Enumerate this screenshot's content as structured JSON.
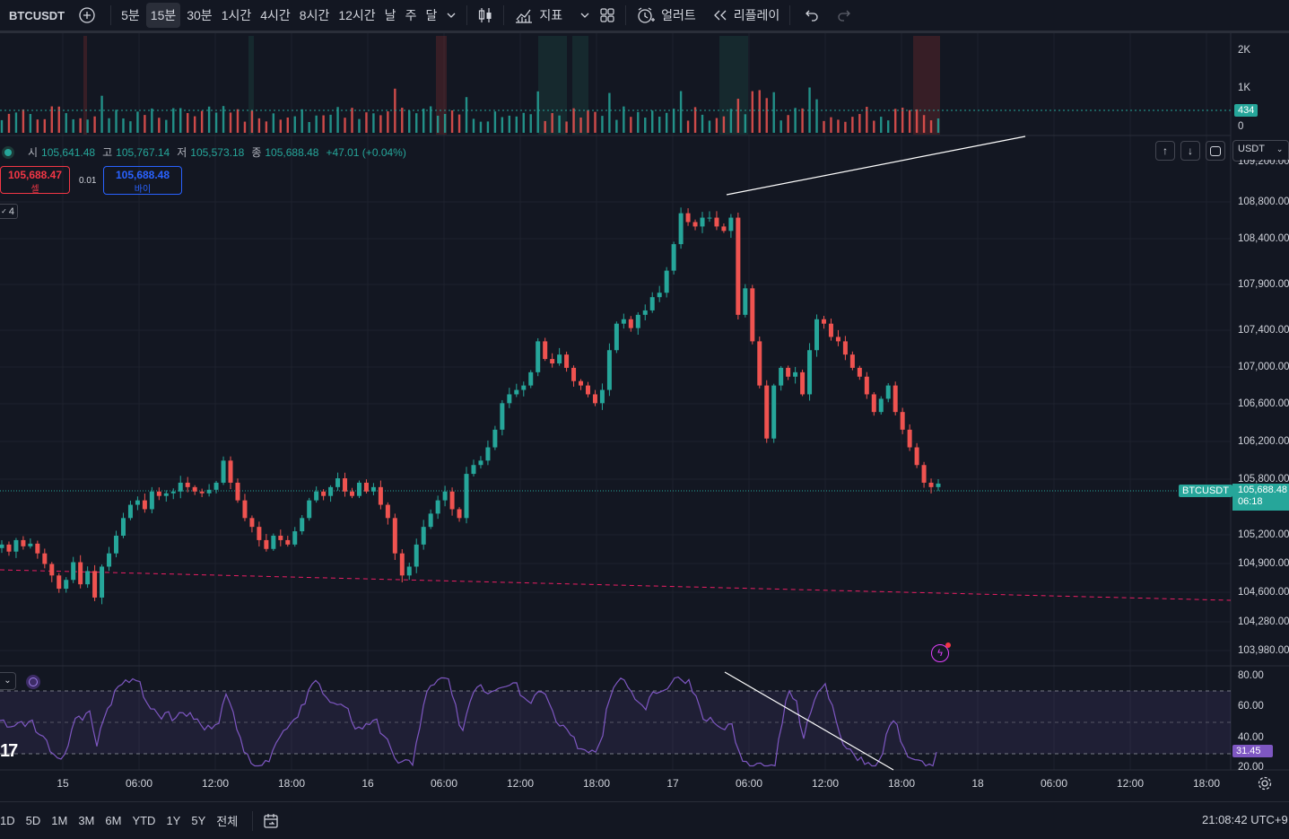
{
  "symbol": "BTCUSDT",
  "timeframes": [
    "5분",
    "15분",
    "30분",
    "1시간",
    "4시간",
    "8시간",
    "12시간",
    "날",
    "주",
    "달"
  ],
  "selected_timeframe": "15분",
  "toolbar": {
    "indicators": "지표",
    "alerts": "얼러트",
    "replay": "리플레이"
  },
  "ohlc": {
    "o_label": "시",
    "o": "105,641.48",
    "h_label": "고",
    "h": "105,767.14",
    "l_label": "저",
    "l": "105,573.18",
    "c_label": "종",
    "c": "105,688.48",
    "change": "+47.01 (+0.04%)"
  },
  "trade": {
    "sell_price": "105,688.47",
    "sell_label": "셀",
    "spread": "0.01",
    "buy_price": "105,688.48",
    "buy_label": "바이"
  },
  "indicator_count": "4",
  "currency": "USDT",
  "volume_axis": [
    "2K",
    "1K",
    "0"
  ],
  "volume_last": "434",
  "price_axis": [
    "108,800.00",
    "108,400.00",
    "107,900.00",
    "107,400.00",
    "107,000.00",
    "106,600.00",
    "106,200.00",
    "105,800.00",
    "105,200.00",
    "104,900.00",
    "104,600.00",
    "104,280.00",
    "103,980.00"
  ],
  "price_top_partial": "109,200.00",
  "last_price": {
    "symbol": "BTCUSDT",
    "price": "105,688.48",
    "countdown": "06:18"
  },
  "rsi_axis": [
    "80.00",
    "60.00",
    "40.00",
    "20.00"
  ],
  "rsi_last": "31.45",
  "time_axis": [
    "15",
    "06:00",
    "12:00",
    "18:00",
    "16",
    "06:00",
    "12:00",
    "18:00",
    "17",
    "06:00",
    "12:00",
    "18:00",
    "18",
    "06:00",
    "12:00",
    "18:00"
  ],
  "ranges": [
    "1D",
    "5D",
    "1M",
    "3M",
    "6M",
    "YTD",
    "1Y",
    "5Y",
    "전체"
  ],
  "clock": "21:08:42 UTC+9",
  "colors": {
    "up": "#26a69a",
    "down": "#ef5350",
    "bg": "#131722",
    "rsi": "#7e57c2"
  },
  "chart_data": {
    "type": "candlestick",
    "y_range": [
      103800,
      109300
    ],
    "closes": [
      105000,
      104920,
      105050,
      104980,
      105010,
      104900,
      104780,
      104650,
      104500,
      104600,
      104800,
      104550,
      104700,
      104400,
      104750,
      104900,
      105100,
      105300,
      105450,
      105500,
      105400,
      105600,
      105550,
      105580,
      105600,
      105700,
      105650,
      105600,
      105580,
      105620,
      105700,
      105950,
      105700,
      105500,
      105300,
      105200,
      105050,
      104950,
      105100,
      105050,
      105000,
      105150,
      105300,
      105500,
      105600,
      105550,
      105650,
      105750,
      105600,
      105550,
      105700,
      105600,
      105650,
      105450,
      105300,
      104900,
      104650,
      104750,
      105000,
      105200,
      105350,
      105500,
      105600,
      105400,
      105300,
      105800,
      105900,
      105950,
      106100,
      106300,
      106600,
      106700,
      106750,
      106800,
      106950,
      107300,
      107100,
      107050,
      107150,
      107000,
      106850,
      106800,
      106700,
      106600,
      106750,
      107200,
      107500,
      107550,
      107450,
      107600,
      107650,
      107800,
      107850,
      108100,
      108400,
      108750,
      108650,
      108600,
      108700,
      108700,
      108600,
      108550,
      108700,
      107600,
      107900,
      107300,
      106800,
      106200,
      106800,
      107000,
      106900,
      106950,
      106700,
      107200,
      107550,
      107500,
      107350,
      107300,
      107150,
      107000,
      106900,
      106700,
      106500,
      106650,
      106800,
      106500,
      106300,
      106100,
      105900,
      105700,
      105650,
      105690
    ]
  }
}
